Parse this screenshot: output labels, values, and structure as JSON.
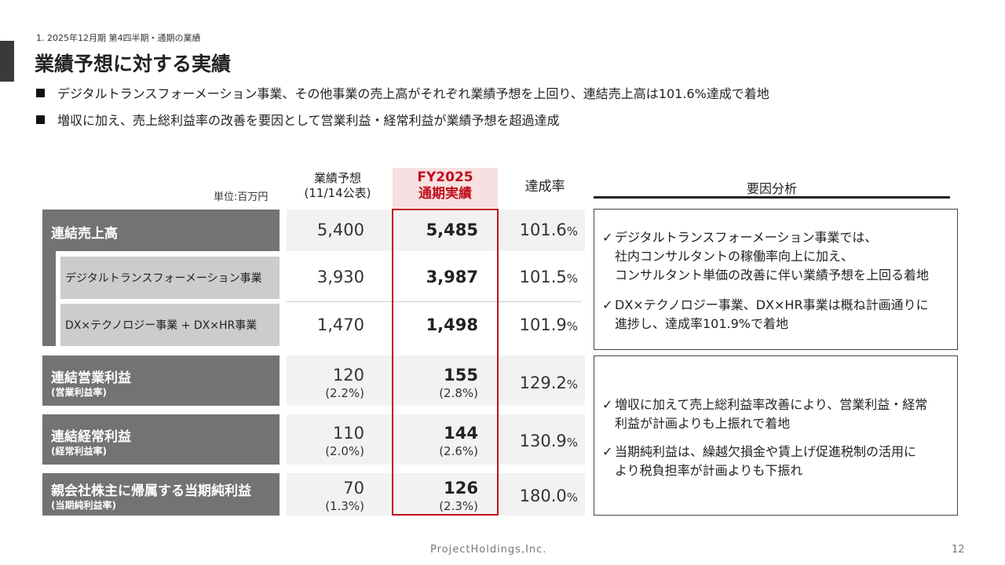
{
  "header": {
    "section": "1. 2025年12月期 第4四半期・通期の業績",
    "title": "業績予想に対する実績"
  },
  "bullets": [
    "デジタルトランスフォーメーション事業、その他事業の売上高がそれぞれ業績予想を上回り、連結売上高は101.6%達成で着地",
    "増収に加え、売上総利益率の改善を要因として営業利益・経常利益が業績予想を超過達成"
  ],
  "table": {
    "unit": "単位:百万円",
    "col_forecast": [
      "業績予想",
      "(11/14公表)"
    ],
    "col_actual": [
      "FY2025",
      "通期実績"
    ],
    "col_rate": "達成率",
    "rows": {
      "sales": {
        "label": "連結売上高",
        "forecast": "5,400",
        "actual": "5,485",
        "rate": "101.6",
        "rate_unit": "%"
      },
      "dx": {
        "label": "デジタルトランスフォーメーション事業",
        "forecast": "3,930",
        "actual": "3,987",
        "rate": "101.5",
        "rate_unit": "%"
      },
      "other": {
        "label": "DX×テクノロジー事業 + DX×HR事業",
        "forecast": "1,470",
        "actual": "1,498",
        "rate": "101.9",
        "rate_unit": "%"
      },
      "op": {
        "label": "連結営業利益",
        "sub": "(営業利益率)",
        "forecast": "120",
        "forecast_pct": "(2.2%)",
        "actual": "155",
        "actual_pct": "(2.8%)",
        "rate": "129.2",
        "rate_unit": "%"
      },
      "ord": {
        "label": "連結経常利益",
        "sub": "(経常利益率)",
        "forecast": "110",
        "forecast_pct": "(2.0%)",
        "actual": "144",
        "actual_pct": "(2.6%)",
        "rate": "130.9",
        "rate_unit": "%"
      },
      "net": {
        "label": "親会社株主に帰属する当期純利益",
        "sub": "(当期純利益率)",
        "forecast": "70",
        "forecast_pct": "(1.3%)",
        "actual": "126",
        "actual_pct": "(2.3%)",
        "rate": "180.0",
        "rate_unit": "%"
      }
    }
  },
  "factors": {
    "heading": "要因分析",
    "box1": [
      [
        "デジタルトランスフォーメーション事業では、",
        "社内コンサルタントの稼働率向上に加え、",
        "コンサルタント単価の改善に伴い業績予想を上回る着地"
      ],
      [
        "DX×テクノロジー事業、DX×HR事業は概ね計画通りに",
        "進捗し、達成率101.9%で着地"
      ]
    ],
    "box2": [
      [
        "増収に加えて売上総利益率改善により、営業利益・経常",
        "利益が計画よりも上振れで着地"
      ],
      [
        "当期純利益は、繰越欠損金や賃上げ促進税制の活用に",
        "より税負担率が計画よりも下振れ"
      ]
    ],
    "check": "✓"
  },
  "footer": {
    "company": "ProjectHoldings,Inc.",
    "page": "12"
  }
}
